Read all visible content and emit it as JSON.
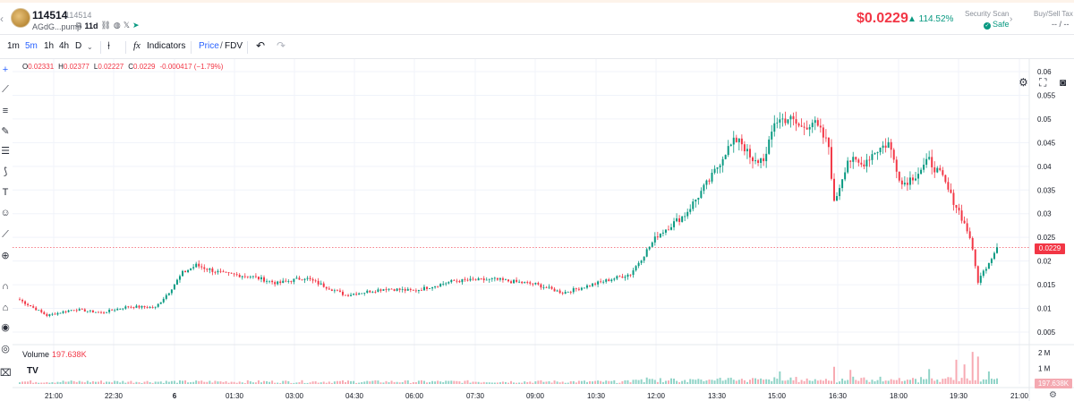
{
  "header": {
    "token_name": "114514",
    "token_symbol": "114514",
    "address": "AGdG...pump",
    "age": "11d",
    "price": "$0.0229",
    "change": "▲ 114.52%",
    "security_scan_label": "Security Scan",
    "security_status": "Safe",
    "tax_label": "Buy/Sell Tax",
    "tax_value": "-- / --"
  },
  "toolbar": {
    "intervals": [
      "1m",
      "5m",
      "1h",
      "4h",
      "D"
    ],
    "active_interval": "5m",
    "indicators_label": "Indicators",
    "price_label": "Price",
    "fdv_label": "FDV",
    "slash": "/"
  },
  "legend": {
    "open_label": "O",
    "open": "0.02331",
    "high_label": "H",
    "high": "0.02377",
    "low_label": "L",
    "low": "0.02227",
    "close_label": "C",
    "close": "0.0229",
    "change": "-0.000417 (−1.79%)"
  },
  "volume": {
    "label": "Volume",
    "value": "197.638K",
    "tag": "197.638K"
  },
  "price_tag": "0.0229",
  "icons": {
    "back": "chevron-left-icon",
    "copy": "copy-icon",
    "socials": [
      "link-icon",
      "globe-icon",
      "x-icon",
      "telegram-icon"
    ],
    "right": [
      "settings-icon",
      "fullscreen-icon",
      "camera-icon"
    ]
  },
  "colors": {
    "up": "#089981",
    "down": "#f23645",
    "accent": "#2962ff"
  },
  "chart_data": {
    "type": "candlestick",
    "x_ticks": [
      "21:00",
      "22:30",
      "6",
      "01:30",
      "03:00",
      "04:30",
      "06:00",
      "07:30",
      "09:00",
      "10:30",
      "12:00",
      "13:30",
      "15:00",
      "16:30",
      "18:00",
      "19:30",
      "21:00"
    ],
    "y_ticks": [
      "0.06",
      "0.055",
      "0.05",
      "0.045",
      "0.04",
      "0.035",
      "0.03",
      "0.025",
      "0.02",
      "0.015",
      "0.01",
      "0.005"
    ],
    "ylim": [
      0.0025,
      0.0615
    ],
    "volume_ticks": [
      "2 M",
      "1 M"
    ],
    "volume_lim": [
      0,
      2400000
    ],
    "last_price": 0.0229,
    "close_anchors": [
      [
        0,
        0.0118
      ],
      [
        10,
        0.0085
      ],
      [
        20,
        0.0098
      ],
      [
        30,
        0.0091
      ],
      [
        40,
        0.0104
      ],
      [
        50,
        0.0102
      ],
      [
        55,
        0.0135
      ],
      [
        60,
        0.0175
      ],
      [
        65,
        0.0191
      ],
      [
        75,
        0.0173
      ],
      [
        85,
        0.0168
      ],
      [
        95,
        0.0153
      ],
      [
        105,
        0.0165
      ],
      [
        120,
        0.0128
      ],
      [
        135,
        0.0142
      ],
      [
        145,
        0.0137
      ],
      [
        160,
        0.0158
      ],
      [
        175,
        0.0161
      ],
      [
        190,
        0.0151
      ],
      [
        200,
        0.0133
      ],
      [
        215,
        0.0157
      ],
      [
        225,
        0.0173
      ],
      [
        235,
        0.0255
      ],
      [
        245,
        0.0298
      ],
      [
        255,
        0.0378
      ],
      [
        260,
        0.0432
      ],
      [
        265,
        0.0462
      ],
      [
        270,
        0.0405
      ],
      [
        275,
        0.0422
      ],
      [
        278,
        0.0495
      ],
      [
        283,
        0.0502
      ],
      [
        288,
        0.0481
      ],
      [
        292,
        0.0495
      ],
      [
        295,
        0.0472
      ],
      [
        298,
        0.0442
      ],
      [
        300,
        0.0321
      ],
      [
        305,
        0.0415
      ],
      [
        310,
        0.0403
      ],
      [
        315,
        0.0432
      ],
      [
        320,
        0.0449
      ],
      [
        325,
        0.0362
      ],
      [
        330,
        0.0382
      ],
      [
        335,
        0.0412
      ],
      [
        340,
        0.0375
      ],
      [
        343,
        0.0337
      ],
      [
        346,
        0.0305
      ],
      [
        350,
        0.0251
      ],
      [
        353,
        0.0157
      ],
      [
        356,
        0.0188
      ],
      [
        360,
        0.0229
      ]
    ],
    "candle_count": 361,
    "volume_peaks": [
      [
        280,
        800000
      ],
      [
        300,
        1100000
      ],
      [
        306,
        900000
      ],
      [
        335,
        950000
      ],
      [
        345,
        1550000
      ],
      [
        348,
        1250000
      ],
      [
        351,
        2050000
      ],
      [
        353,
        1750000
      ],
      [
        357,
        800000
      ]
    ]
  }
}
